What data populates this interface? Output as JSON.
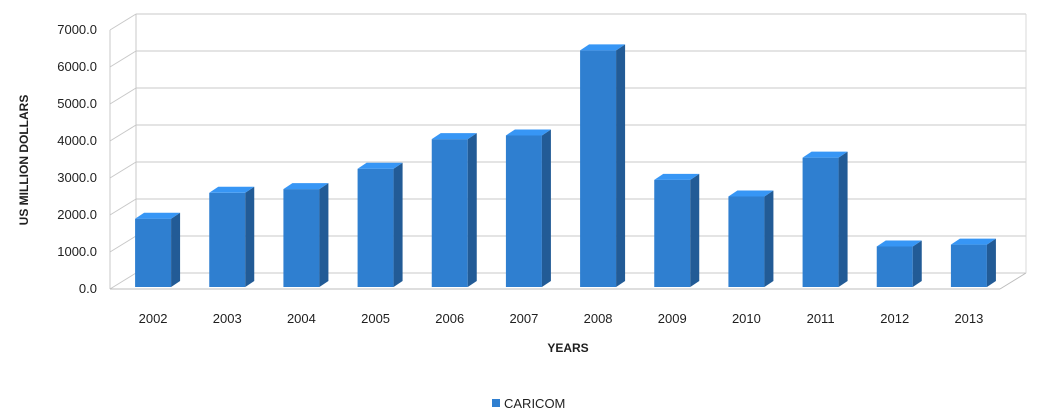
{
  "chart_data": {
    "type": "bar",
    "title": "",
    "xlabel": "YEARS",
    "ylabel": "US MILLION DOLLARS",
    "categories": [
      "2002",
      "2003",
      "2004",
      "2005",
      "2006",
      "2007",
      "2008",
      "2009",
      "2010",
      "2011",
      "2012",
      "2013"
    ],
    "series": [
      {
        "name": "CARICOM",
        "color": "#2f7fd0",
        "values": [
          1900,
          2600,
          2700,
          3250,
          4050,
          4150,
          6450,
          2950,
          2500,
          3550,
          1150,
          1200
        ]
      }
    ],
    "yticks": [
      "0.0",
      "1000.0",
      "2000.0",
      "3000.0",
      "4000.0",
      "5000.0",
      "6000.0",
      "7000.0"
    ],
    "ylim": [
      0,
      7000
    ],
    "grid": true,
    "legend_position": "bottom-center",
    "style": "3d-column"
  }
}
